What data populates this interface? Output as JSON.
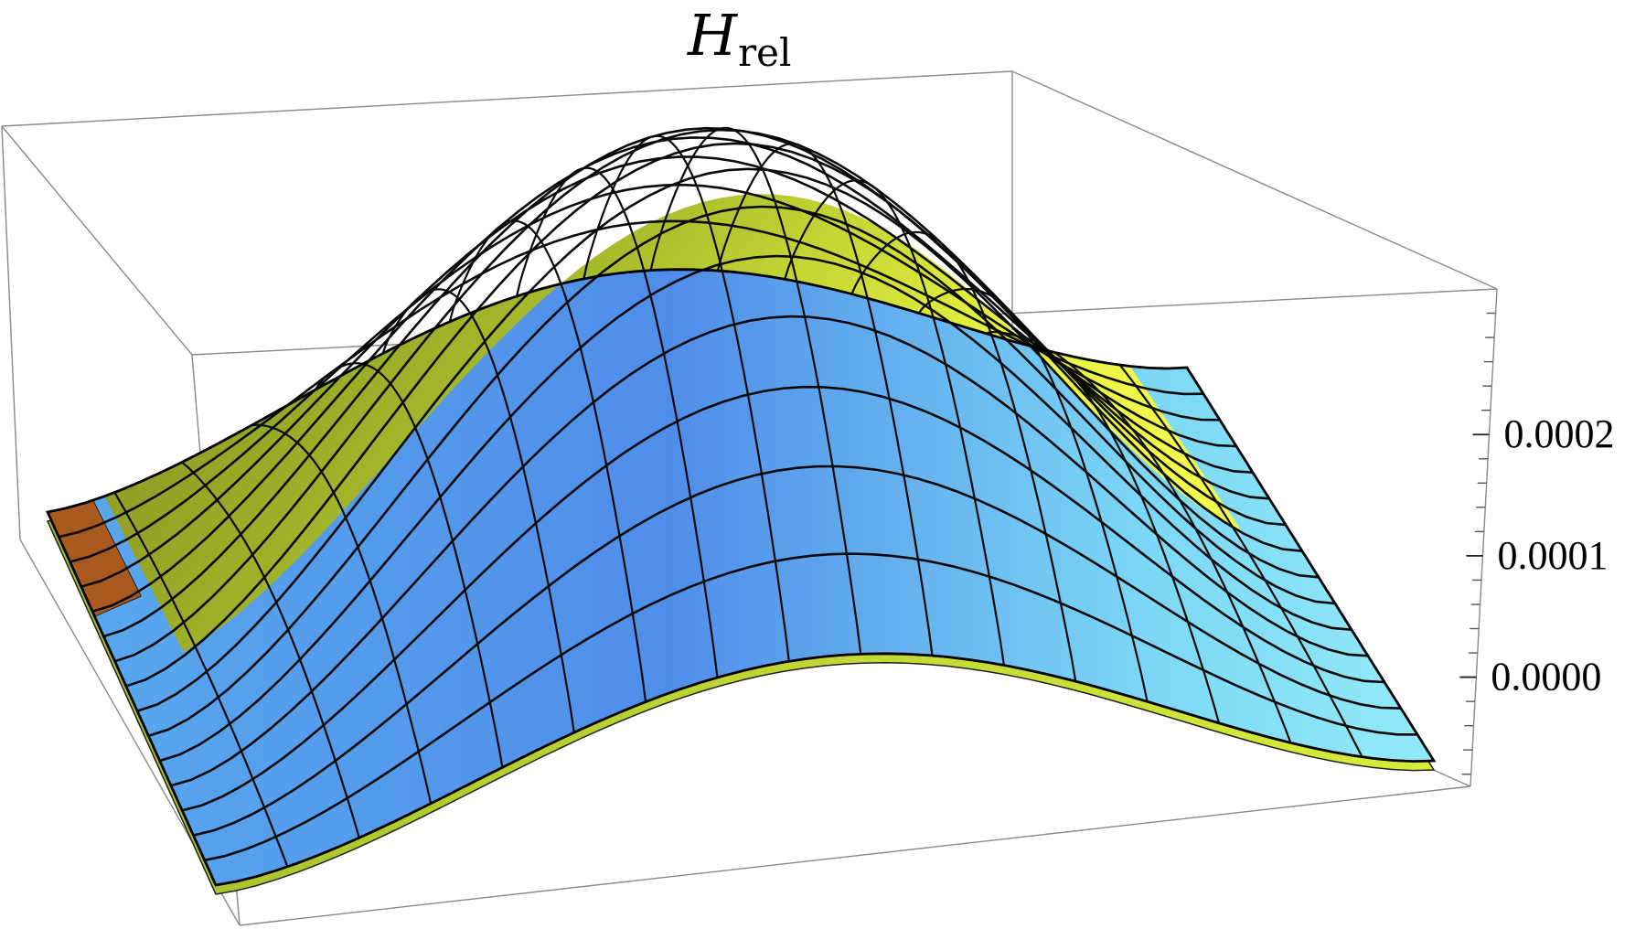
{
  "chart_data": {
    "type": "surface3d",
    "title": "H",
    "title_subscript": "rel",
    "zlabel": "",
    "z_ticks": [
      {
        "value": 0.0002,
        "label": "0.0002"
      },
      {
        "value": 0.0001,
        "label": "0.0001"
      },
      {
        "value": 0.0,
        "label": "0.0000"
      }
    ],
    "zlim": [
      -9e-05,
      0.00032
    ],
    "shape": "two overlapping smooth hump-shaped surfaces (peak ~0.00032 near the centre, falling to ~-0.00009 at the near/far corners)",
    "surfaces": [
      {
        "name": "",
        "color_top": "#d8e83a",
        "color_side": "#9aad2a"
      },
      {
        "name": "",
        "color_top": "#6ab8f2",
        "color_side": "#4a86e0"
      }
    ],
    "mesh_lines": 15,
    "grid": false,
    "box": true
  }
}
